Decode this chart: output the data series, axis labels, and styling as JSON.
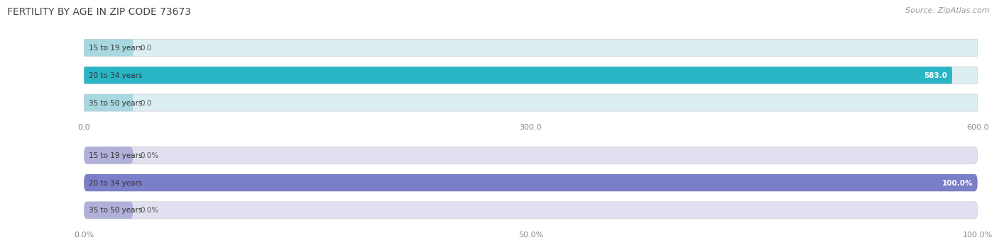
{
  "title": "FERTILITY BY AGE IN ZIP CODE 73673",
  "source": "Source: ZipAtlas.com",
  "top_chart": {
    "categories": [
      "15 to 19 years",
      "20 to 34 years",
      "35 to 50 years"
    ],
    "values": [
      0.0,
      583.0,
      0.0
    ],
    "xlim": [
      0,
      600.0
    ],
    "xticks": [
      0.0,
      300.0,
      600.0
    ],
    "bar_color": "#29b5c6",
    "bar_bg_color": "#ddeef2",
    "small_bar_color": "#a8d8e0",
    "label_values": [
      "0.0",
      "583.0",
      "0.0"
    ]
  },
  "bottom_chart": {
    "categories": [
      "15 to 19 years",
      "20 to 34 years",
      "35 to 50 years"
    ],
    "values": [
      0.0,
      100.0,
      0.0
    ],
    "xlim": [
      0,
      100.0
    ],
    "xticks": [
      0.0,
      50.0,
      100.0
    ],
    "xtick_labels": [
      "0.0%",
      "50.0%",
      "100.0%"
    ],
    "bar_color": "#7b7ec8",
    "bar_bg_color": "#e0e0f0",
    "small_bar_color": "#b0b0d8",
    "label_values": [
      "0.0%",
      "100.0%",
      "0.0%"
    ]
  },
  "title_fontsize": 10,
  "source_fontsize": 8,
  "label_fontsize": 7.5,
  "category_fontsize": 7.5,
  "tick_fontsize": 8
}
